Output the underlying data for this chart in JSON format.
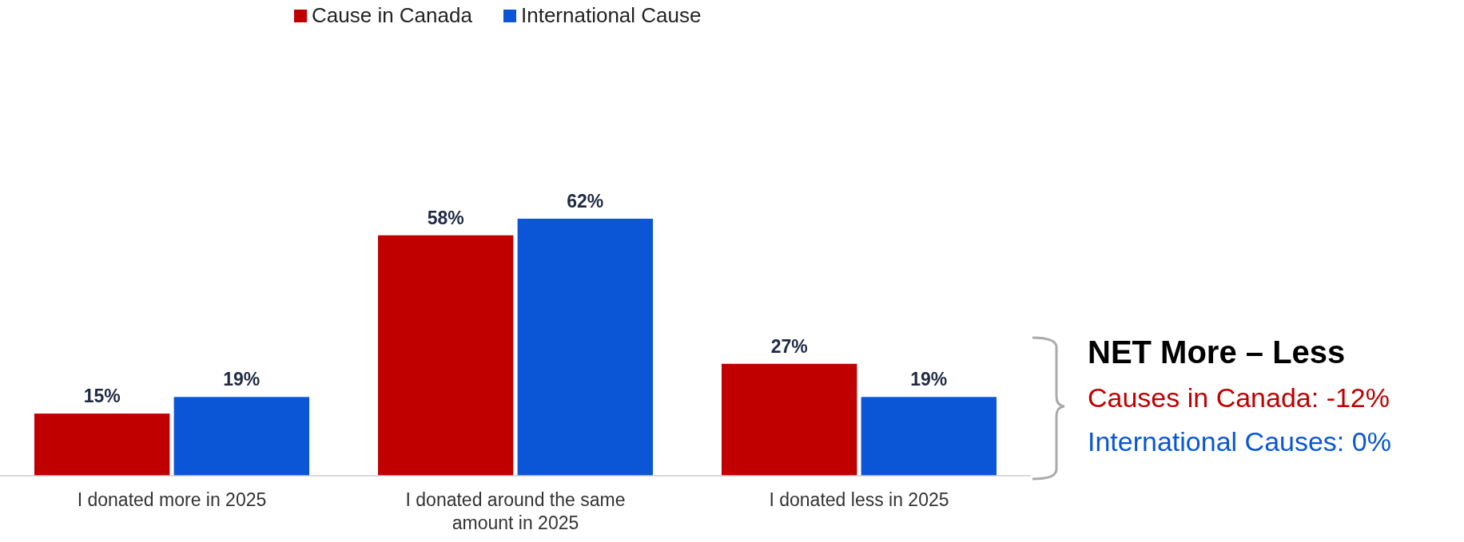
{
  "chart_data": {
    "type": "bar",
    "categories": [
      "I donated more in 2025",
      "I donated around the same amount in 2025",
      "I donated less in 2025"
    ],
    "series": [
      {
        "name": "Cause in Canada",
        "color": "#c00000",
        "values": [
          15,
          58,
          27
        ],
        "value_labels": [
          "15%",
          "58%",
          "27%"
        ]
      },
      {
        "name": "International Cause",
        "color": "#0a56d6",
        "values": [
          19,
          62,
          19
        ],
        "value_labels": [
          "19%",
          "62%",
          "19%"
        ]
      }
    ],
    "legend": "top",
    "annotations": [
      "NET More – Less",
      "Causes in Canada: -12%",
      "International Causes: 0%"
    ]
  }
}
